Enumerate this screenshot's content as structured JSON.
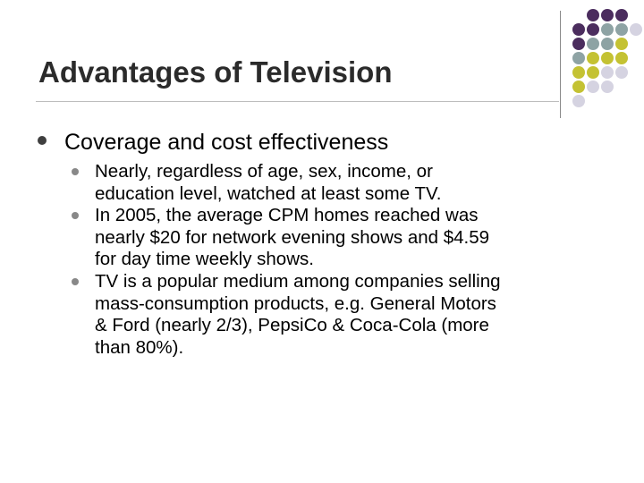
{
  "slide": {
    "title": "Advantages of Television",
    "level1": {
      "text": "Coverage and cost effectiveness"
    },
    "level2": [
      {
        "lines": [
          "Nearly, regardless of age, sex, income, or",
          "education level, watched at least some TV."
        ]
      },
      {
        "lines": [
          "In 2005, the average CPM homes reached was",
          "nearly $20 for network evening shows and $4.59",
          "for day time weekly shows."
        ]
      },
      {
        "lines": [
          "TV is a popular medium among companies selling",
          "mass-consumption products, e.g. General Motors",
          "& Ford (nearly 2/3), PepsiCo & Coca-Cola (more",
          "than 80%)."
        ]
      }
    ]
  },
  "colors": {
    "title_text": "#2b2b2b",
    "bullet_level1": "#3f3f3f",
    "bullet_level2": "#888888",
    "dot_purple": "#4b2d5e",
    "dot_teal": "#8ea3a4",
    "dot_olive": "#c4c233",
    "dot_lavender": "#d5d3e1"
  }
}
